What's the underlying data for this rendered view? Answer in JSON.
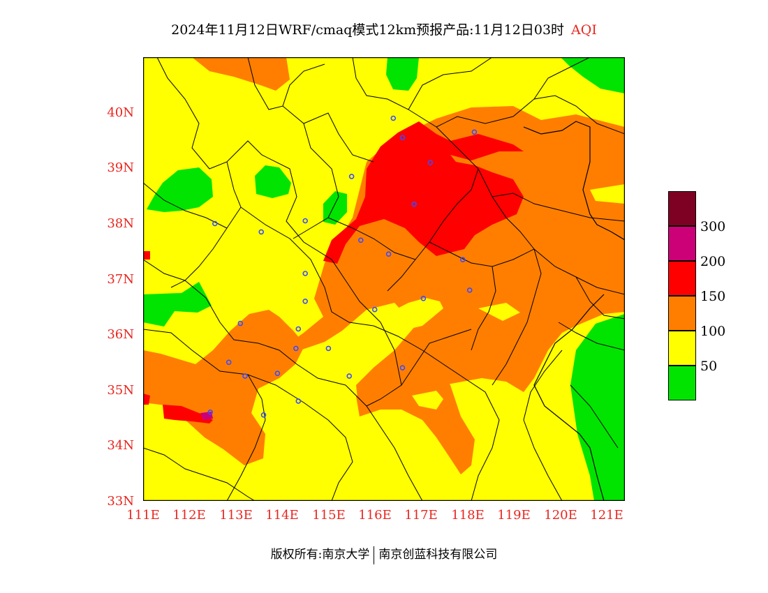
{
  "title": "2024年11月12日WRF/cmaq模式12km预报产品:11月12日03时",
  "title_tag": "AQI",
  "map": {
    "lon_range": [
      111,
      121.4
    ],
    "lat_range": [
      33,
      41
    ],
    "y_ticks": [
      "40N",
      "39N",
      "38N",
      "37N",
      "36N",
      "35N",
      "34N",
      "33N"
    ],
    "y_tick_values": [
      40,
      39,
      38,
      37,
      36,
      35,
      34,
      33
    ],
    "x_ticks": [
      "111E",
      "112E",
      "113E",
      "114E",
      "115E",
      "116E",
      "117E",
      "118E",
      "119E",
      "120E",
      "121E"
    ],
    "x_tick_values": [
      111,
      112,
      113,
      114,
      115,
      116,
      117,
      118,
      119,
      120,
      121
    ],
    "colors": {
      "good": "#00e400",
      "moderate": "#ffff00",
      "unhealthy_sensitive": "#ff7e00",
      "unhealthy": "#ff0000",
      "very_unhealthy": "#cc0077",
      "hazardous": "#7e0023",
      "boundary": "#000000",
      "station": "#3b4cff",
      "tick_label": "#e8261f"
    },
    "stations_lonlat": [
      [
        116.4,
        39.9
      ],
      [
        116.6,
        39.55
      ],
      [
        117.2,
        39.1
      ],
      [
        118.15,
        39.65
      ],
      [
        116.85,
        38.35
      ],
      [
        115.5,
        38.85
      ],
      [
        114.5,
        38.05
      ],
      [
        113.55,
        37.85
      ],
      [
        112.55,
        38.0
      ],
      [
        115.7,
        37.7
      ],
      [
        116.3,
        37.45
      ],
      [
        117.9,
        37.35
      ],
      [
        114.5,
        37.1
      ],
      [
        117.05,
        36.65
      ],
      [
        114.5,
        36.6
      ],
      [
        118.05,
        36.8
      ],
      [
        116.0,
        36.45
      ],
      [
        114.35,
        36.1
      ],
      [
        113.1,
        36.2
      ],
      [
        115.0,
        35.75
      ],
      [
        114.3,
        35.75
      ],
      [
        112.85,
        35.5
      ],
      [
        113.9,
        35.3
      ],
      [
        113.2,
        35.25
      ],
      [
        115.45,
        35.25
      ],
      [
        116.6,
        35.4
      ],
      [
        114.35,
        34.8
      ],
      [
        113.6,
        34.55
      ],
      [
        112.45,
        34.6
      ]
    ]
  },
  "legend": {
    "colors": [
      "#7e0023",
      "#cc0077",
      "#ff0000",
      "#ff7e00",
      "#ffff00",
      "#00e400"
    ],
    "labels": [
      "300",
      "200",
      "150",
      "100",
      "50"
    ]
  },
  "footer": {
    "left": "版权所有:南京大学",
    "right": "南京创蓝科技有限公司"
  }
}
